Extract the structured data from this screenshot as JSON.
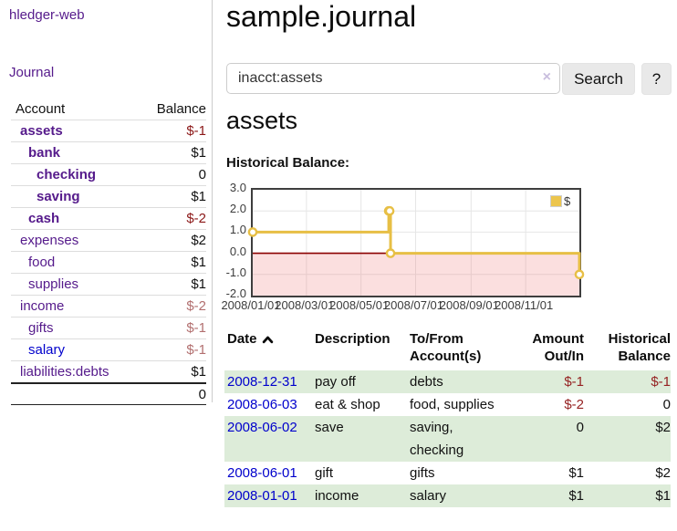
{
  "app": {
    "title": "hledger-web",
    "nav_journal": "Journal"
  },
  "sidebar": {
    "accounts_header": {
      "account": "Account",
      "balance": "Balance"
    },
    "accounts": [
      {
        "name": "assets",
        "balance": "$-1",
        "depth": 0,
        "bold": true,
        "balance_style": "neg-strong",
        "link_color": "purple"
      },
      {
        "name": "bank",
        "balance": "$1",
        "depth": 1,
        "bold": true,
        "balance_style": "pos",
        "link_color": "purple"
      },
      {
        "name": "checking",
        "balance": "0",
        "depth": 2,
        "bold": true,
        "balance_style": "pos",
        "link_color": "purple"
      },
      {
        "name": "saving",
        "balance": "$1",
        "depth": 2,
        "bold": true,
        "balance_style": "pos",
        "link_color": "purple"
      },
      {
        "name": "cash",
        "balance": "$-2",
        "depth": 1,
        "bold": true,
        "balance_style": "neg-strong",
        "link_color": "purple"
      },
      {
        "name": "expenses",
        "balance": "$2",
        "depth": 0,
        "bold": false,
        "balance_style": "pos",
        "link_color": "purple"
      },
      {
        "name": "food",
        "balance": "$1",
        "depth": 1,
        "bold": false,
        "balance_style": "pos",
        "link_color": "purple"
      },
      {
        "name": "supplies",
        "balance": "$1",
        "depth": 1,
        "bold": false,
        "balance_style": "pos",
        "link_color": "purple"
      },
      {
        "name": "income",
        "balance": "$-2",
        "depth": 0,
        "bold": false,
        "balance_style": "neg-light",
        "link_color": "purple"
      },
      {
        "name": "gifts",
        "balance": "$-1",
        "depth": 1,
        "bold": false,
        "balance_style": "neg-light",
        "link_color": "purple"
      },
      {
        "name": "salary",
        "balance": "$-1",
        "depth": 1,
        "bold": false,
        "balance_style": "neg-light",
        "link_color": "blue"
      },
      {
        "name": "liabilities:debts",
        "balance": "$1",
        "depth": 0,
        "bold": false,
        "balance_style": "pos",
        "link_color": "purple"
      }
    ],
    "total": "0"
  },
  "main": {
    "title": "sample.journal",
    "search": {
      "value": "inacct:assets",
      "clear_icon": "×",
      "button": "Search",
      "help_button": "?"
    },
    "account_heading": "assets",
    "chart_label": "Historical Balance:"
  },
  "chart_data": {
    "type": "line",
    "title": "Historical Balance",
    "step": true,
    "series": [
      {
        "name": "$",
        "color": "#e7bf45",
        "points": [
          [
            "2008-01-01",
            1
          ],
          [
            "2008-06-01",
            2
          ],
          [
            "2008-06-02",
            2
          ],
          [
            "2008-06-03",
            0
          ],
          [
            "2008-12-31",
            -1
          ]
        ]
      }
    ],
    "x_range": [
      "2008-01-01",
      "2008-12-31"
    ],
    "ylim": [
      -2,
      3
    ],
    "y_ticks": [
      "3.0",
      "2.0",
      "1.0",
      "0.0",
      "-1.0",
      "-2.0"
    ],
    "x_ticks": [
      "2008/01/01",
      "2008/03/01",
      "2008/05/01",
      "2008/07/01",
      "2008/09/01",
      "2008/11/01"
    ],
    "grid": true,
    "zero_line_color": "#8b0000",
    "negative_region_fill": "#fadcda",
    "legend_position": "top-right",
    "legend": [
      {
        "label": "$",
        "color": "#ecc54d"
      }
    ]
  },
  "transactions": {
    "headers": [
      [
        "Date",
        ""
      ],
      [
        "Description",
        ""
      ],
      [
        "To/From",
        "Account(s)"
      ],
      [
        "Amount",
        "Out/In"
      ],
      [
        "Historical",
        "Balance"
      ]
    ],
    "rows": [
      {
        "date": "2008-12-31",
        "description": "pay off",
        "accounts_lines": [
          "debts"
        ],
        "amount": "$-1",
        "amount_neg": true,
        "balance": "$-1",
        "balance_neg": true,
        "shaded": true
      },
      {
        "date": "2008-06-03",
        "description": "eat & shop",
        "accounts_lines": [
          "food, supplies"
        ],
        "amount": "$-2",
        "amount_neg": true,
        "balance": "0",
        "balance_neg": false,
        "shaded": false
      },
      {
        "date": "2008-06-02",
        "description": "save",
        "accounts_lines": [
          "saving,",
          "checking"
        ],
        "amount": "0",
        "amount_neg": false,
        "balance": "$2",
        "balance_neg": false,
        "shaded": true
      },
      {
        "date": "2008-06-01",
        "description": "gift",
        "accounts_lines": [
          "gifts"
        ],
        "amount": "$1",
        "amount_neg": false,
        "balance": "$2",
        "balance_neg": false,
        "shaded": false
      },
      {
        "date": "2008-01-01",
        "description": "income",
        "accounts_lines": [
          "salary"
        ],
        "amount": "$1",
        "amount_neg": false,
        "balance": "$1",
        "balance_neg": false,
        "shaded": true
      }
    ]
  }
}
